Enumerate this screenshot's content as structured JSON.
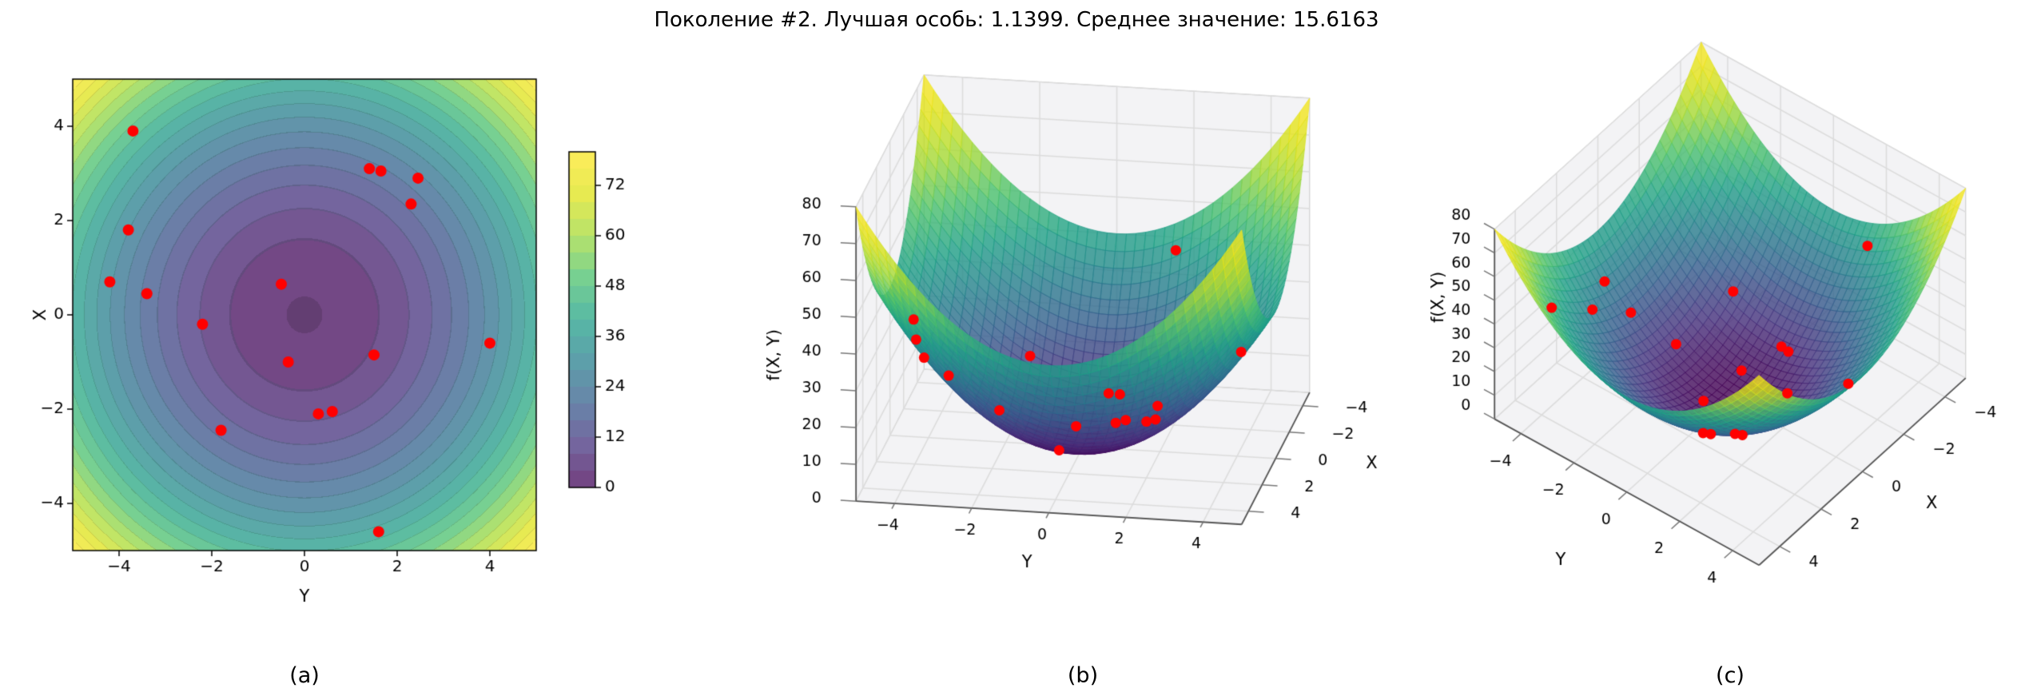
{
  "title": "Поколение #2. Лучшая особь: 1.1399. Среднее значение: 15.6163",
  "generation": 2,
  "best_individual": 1.1399,
  "mean_value": 15.6163,
  "captions": [
    "(a)",
    "(b)",
    "(c)"
  ],
  "colors": {
    "point": "#ff0000",
    "pane": "#f3f3f5",
    "grid": "#dcdcdc",
    "pane_edge": "#c8c8c8",
    "spine": "#555555",
    "tick": "#777777",
    "background": "#ffffff",
    "viridis_stops": [
      "#440154",
      "#46327e",
      "#365c8d",
      "#277f8e",
      "#1fa187",
      "#4ac16d",
      "#a0da39",
      "#dfe318",
      "#fde725"
    ]
  },
  "population_points": [
    {
      "x": 3.9,
      "y": -3.7
    },
    {
      "x": 1.8,
      "y": -3.8
    },
    {
      "x": 0.7,
      "y": -4.2
    },
    {
      "x": 0.45,
      "y": -3.4
    },
    {
      "x": -0.2,
      "y": -2.2
    },
    {
      "x": -2.45,
      "y": -1.8
    },
    {
      "x": 0.65,
      "y": -0.5
    },
    {
      "x": -1.0,
      "y": -0.35
    },
    {
      "x": -2.1,
      "y": 0.3
    },
    {
      "x": -2.05,
      "y": 0.6
    },
    {
      "x": 3.1,
      "y": 1.4
    },
    {
      "x": 3.05,
      "y": 1.65
    },
    {
      "x": -0.85,
      "y": 1.5
    },
    {
      "x": -4.6,
      "y": 1.6
    },
    {
      "x": 2.9,
      "y": 2.45
    },
    {
      "x": 2.35,
      "y": 2.3
    },
    {
      "x": -0.6,
      "y": 4.0
    }
  ],
  "chart_data": [
    {
      "id": "a",
      "type": "heatmap",
      "subtype": "filled_contour_with_scatter",
      "xlabel": "Y",
      "ylabel": "X",
      "xlim": [
        -5,
        5
      ],
      "ylim": [
        -5,
        5
      ],
      "xticks": [
        -4,
        -2,
        0,
        2,
        4
      ],
      "yticks": [
        -4,
        -2,
        0,
        2,
        4
      ],
      "z_formula": "z = 1.6·(X² + Y²)",
      "z_scale": 1.6,
      "zlim": [
        0,
        80
      ],
      "level_step": 4,
      "colorbar_ticks": [
        0,
        12,
        24,
        36,
        48,
        60,
        72
      ],
      "colormap": "viridis",
      "alpha": 0.75,
      "points_source": "population_points"
    },
    {
      "id": "b",
      "type": "surface3d",
      "subtype": "surface_with_scatter",
      "xlabel": "X",
      "ylabel": "Y",
      "zlabel": "f(X, Y)",
      "xlim": [
        -5,
        5
      ],
      "ylim": [
        -5,
        5
      ],
      "zlim": [
        0,
        80
      ],
      "xticks": [
        -4,
        -2,
        0,
        2,
        4
      ],
      "yticks": [
        -4,
        -2,
        0,
        2,
        4
      ],
      "zticks": [
        0,
        10,
        20,
        30,
        40,
        50,
        60,
        70,
        80
      ],
      "z_formula": "z = 1.6·(X² + Y²)",
      "z_scale": 1.6,
      "view": {
        "elev": 20,
        "rot": -10
      },
      "colormap": "viridis",
      "alpha": 0.8,
      "points_source": "population_points"
    },
    {
      "id": "c",
      "type": "surface3d",
      "subtype": "surface_with_scatter",
      "xlabel": "X",
      "ylabel": "Y",
      "zlabel": "f(X, Y)",
      "xlim": [
        -5,
        5
      ],
      "ylim": [
        -5,
        5
      ],
      "zlim": [
        0,
        80
      ],
      "xticks": [
        -4,
        -2,
        0,
        2,
        4
      ],
      "yticks": [
        -4,
        -2,
        0,
        2,
        4
      ],
      "zticks": [
        0,
        10,
        20,
        30,
        40,
        50,
        60,
        70,
        80
      ],
      "z_formula": "z = 1.6·(X² + Y²)",
      "z_scale": 1.6,
      "view": {
        "elev": 45,
        "rot": -38
      },
      "colormap": "viridis",
      "alpha": 0.8,
      "points_source": "population_points"
    }
  ]
}
